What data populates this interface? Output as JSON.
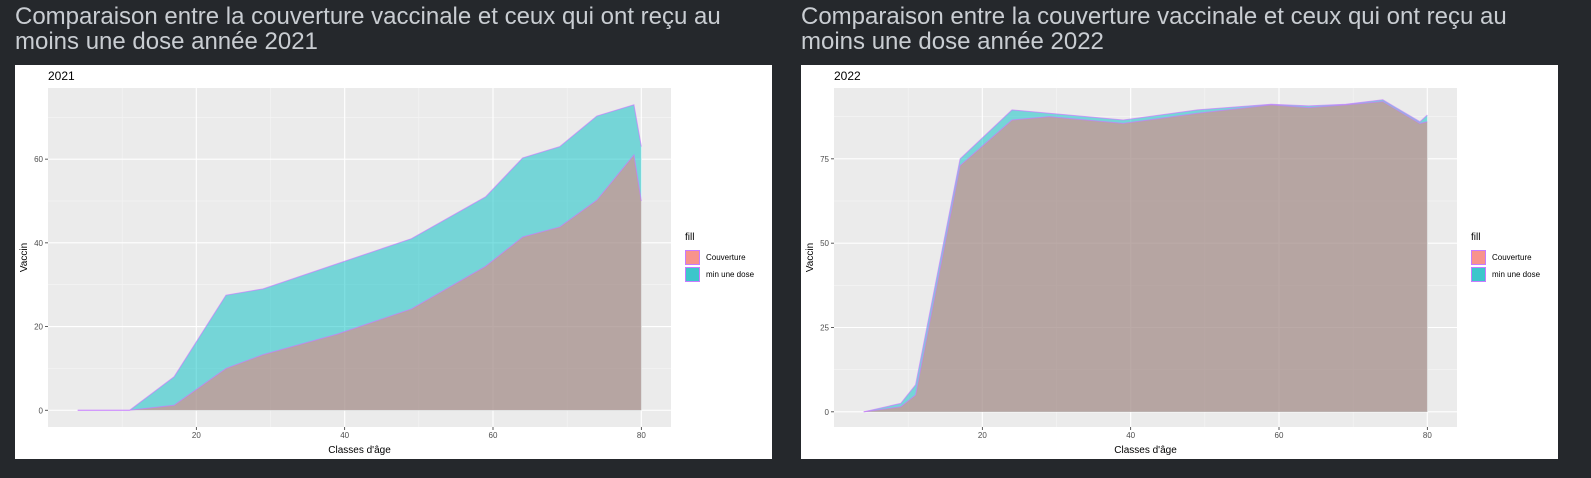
{
  "panels": [
    {
      "title": "Comparaison entre la couverture vaccinale et ceux qui ont reçu au moins une dose année 2021",
      "subtitle": "2021",
      "legend": {
        "title": "fill",
        "items": [
          {
            "label": "Couverture",
            "color": "#f8766d"
          },
          {
            "label": "min une dose",
            "color": "#00bfc4"
          }
        ]
      }
    },
    {
      "title": "Comparaison entre la couverture vaccinale et ceux qui ont reçu au moins une dose année 2022",
      "subtitle": "2022",
      "legend": {
        "title": "fill",
        "items": [
          {
            "label": "Couverture",
            "color": "#f8766d"
          },
          {
            "label": "min une dose",
            "color": "#00bfc4"
          }
        ]
      }
    }
  ],
  "chart_data": [
    {
      "type": "area",
      "title": "2021",
      "xlabel": "Classes d'âge",
      "ylabel": "Vaccin",
      "xlim": [
        0,
        84
      ],
      "ylim": [
        -4,
        77
      ],
      "xticks": [
        20,
        40,
        60,
        80
      ],
      "yticks": [
        0,
        20,
        40,
        60
      ],
      "grid": true,
      "legend_position": "right",
      "series": [
        {
          "name": "min une dose",
          "color": "#00bfc4",
          "x": [
            4,
            11,
            17,
            24,
            29,
            39,
            49,
            59,
            64,
            69,
            74,
            79,
            80
          ],
          "values": [
            0,
            0,
            8,
            27.5,
            29,
            35,
            41,
            51,
            60.3,
            63,
            70.3,
            73,
            63
          ]
        },
        {
          "name": "Couverture",
          "color": "#f8766d",
          "x": [
            4,
            11,
            17,
            24,
            29,
            39,
            49,
            59,
            64,
            69,
            74,
            79,
            80
          ],
          "values": [
            0,
            0,
            1.2,
            10,
            13.3,
            18.2,
            24.2,
            34.4,
            41.4,
            43.8,
            50.2,
            61,
            50
          ]
        }
      ]
    },
    {
      "type": "area",
      "title": "2022",
      "xlabel": "Classes d'âge",
      "ylabel": "Vaccin",
      "xlim": [
        0,
        84
      ],
      "ylim": [
        -4.5,
        96
      ],
      "xticks": [
        20,
        40,
        60,
        80
      ],
      "yticks": [
        0,
        25,
        50,
        75
      ],
      "grid": true,
      "legend_position": "right",
      "series": [
        {
          "name": "min une dose",
          "color": "#00bfc4",
          "x": [
            4,
            9,
            11,
            17,
            24,
            29,
            39,
            49,
            59,
            64,
            69,
            74,
            79,
            80
          ],
          "values": [
            0,
            2.5,
            8,
            75,
            89.5,
            88.5,
            86.5,
            89.5,
            91.2,
            90.7,
            91.2,
            92.5,
            86,
            88
          ]
        },
        {
          "name": "Couverture",
          "color": "#f8766d",
          "x": [
            4,
            9,
            11,
            17,
            24,
            29,
            39,
            49,
            59,
            64,
            69,
            74,
            79,
            80
          ],
          "values": [
            0,
            1.5,
            5,
            73,
            86.5,
            87.5,
            85.5,
            88.5,
            91,
            90.2,
            91,
            92,
            85.5,
            86
          ]
        }
      ]
    }
  ]
}
